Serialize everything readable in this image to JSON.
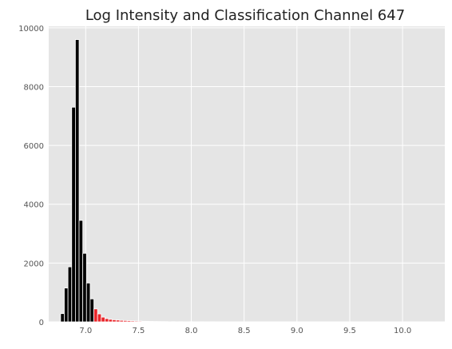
{
  "chart_data": {
    "type": "bar",
    "title": "Log Intensity and Classification Channel 647",
    "xlabel": "",
    "ylabel": "",
    "xlim": [
      6.65,
      10.4
    ],
    "ylim": [
      0,
      10050
    ],
    "grid": true,
    "background": "#e5e5e5",
    "grid_color": "#ffffff",
    "bin_width": 0.035,
    "x_ticks": [
      7.0,
      7.5,
      8.0,
      8.5,
      9.0,
      9.5,
      10.0
    ],
    "x_tick_labels": [
      "7.0",
      "7.5",
      "8.0",
      "8.5",
      "9.0",
      "9.5",
      "10.0"
    ],
    "y_ticks": [
      0,
      2000,
      4000,
      6000,
      8000,
      10000
    ],
    "y_tick_labels": [
      "0",
      "2000",
      "4000",
      "6000",
      "8000",
      "10000"
    ],
    "series": [
      {
        "color": "#000000",
        "bins": [
          {
            "x": 6.78,
            "value": 280
          },
          {
            "x": 6.815,
            "value": 1150
          },
          {
            "x": 6.85,
            "value": 1870
          },
          {
            "x": 6.885,
            "value": 7300
          },
          {
            "x": 6.92,
            "value": 9600
          },
          {
            "x": 6.955,
            "value": 3450
          },
          {
            "x": 6.99,
            "value": 2330
          },
          {
            "x": 7.025,
            "value": 1320
          },
          {
            "x": 7.06,
            "value": 780
          }
        ]
      },
      {
        "color": "#e8262b",
        "bins": [
          {
            "x": 7.095,
            "value": 440
          },
          {
            "x": 7.13,
            "value": 270
          },
          {
            "x": 7.165,
            "value": 160
          },
          {
            "x": 7.2,
            "value": 110
          },
          {
            "x": 7.235,
            "value": 85
          },
          {
            "x": 7.27,
            "value": 70
          },
          {
            "x": 7.305,
            "value": 60
          },
          {
            "x": 7.34,
            "value": 50
          },
          {
            "x": 7.375,
            "value": 45
          },
          {
            "x": 7.41,
            "value": 40
          },
          {
            "x": 7.445,
            "value": 32
          },
          {
            "x": 7.48,
            "value": 28
          },
          {
            "x": 7.515,
            "value": 25
          },
          {
            "x": 7.55,
            "value": 20
          },
          {
            "x": 7.585,
            "value": 17
          },
          {
            "x": 7.62,
            "value": 15
          },
          {
            "x": 7.655,
            "value": 12
          },
          {
            "x": 7.69,
            "value": 10
          },
          {
            "x": 7.725,
            "value": 9
          },
          {
            "x": 7.76,
            "value": 8
          },
          {
            "x": 7.83,
            "value": 7
          },
          {
            "x": 7.9,
            "value": 6
          },
          {
            "x": 8.0,
            "value": 5
          },
          {
            "x": 8.1,
            "value": 4
          },
          {
            "x": 8.2,
            "value": 4
          },
          {
            "x": 8.4,
            "value": 3
          },
          {
            "x": 8.6,
            "value": 3
          },
          {
            "x": 8.8,
            "value": 2
          },
          {
            "x": 9.1,
            "value": 2
          },
          {
            "x": 9.4,
            "value": 2
          },
          {
            "x": 9.7,
            "value": 1
          },
          {
            "x": 10.0,
            "value": 1
          },
          {
            "x": 10.3,
            "value": 1
          }
        ]
      }
    ]
  }
}
